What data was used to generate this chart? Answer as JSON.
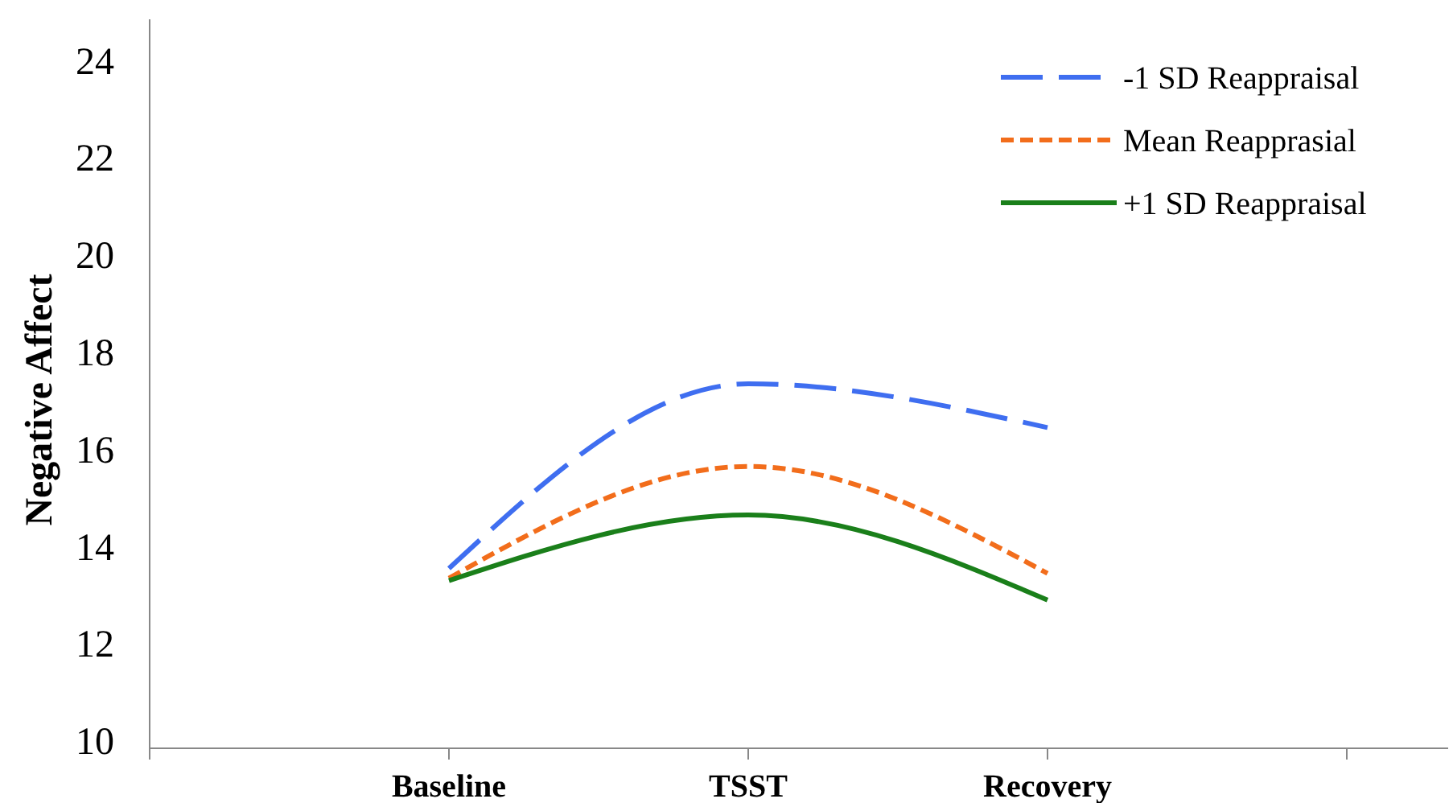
{
  "chart_data": {
    "type": "line",
    "ylabel": "Negative Affect",
    "categories": [
      "Baseline",
      "TSST",
      "Recovery"
    ],
    "series": [
      {
        "name": "-1 SD Reappraisal",
        "color": "#3f6ef0",
        "line_style": "dashed",
        "values": [
          13.7,
          17.5,
          16.6
        ]
      },
      {
        "name": "Mean Reapprasial",
        "color": "#f26d1b",
        "line_style": "dotted",
        "values": [
          13.5,
          15.8,
          13.6
        ]
      },
      {
        "name": "+1 SD Reappraisal",
        "color": "#1a7f1a",
        "line_style": "solid",
        "values": [
          13.45,
          14.8,
          13.05
        ]
      }
    ],
    "ylim": [
      10,
      25
    ],
    "yticks": [
      10,
      12,
      14,
      16,
      18,
      20,
      22,
      24
    ],
    "grid": false,
    "legend": "top right",
    "marker": "none"
  }
}
